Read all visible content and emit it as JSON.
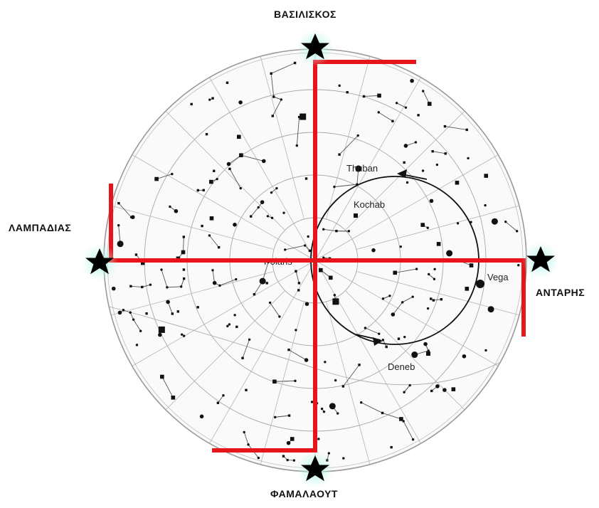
{
  "cardinal_labels": {
    "top": "ΒΑΣΙΛΙΣΚΟΣ",
    "left": "ΛΑΜΠΑΔΙΑΣ",
    "right": "ΑΝΤΑΡΗΣ",
    "bottom": "ΦΑΜΑΛΑΟΥΤ"
  },
  "star_labels": {
    "thuban": "Thuban",
    "kochab": "Kochab",
    "polaris": "Polaris",
    "vega": "Vega",
    "deneb": "Deneb"
  },
  "colors": {
    "swastika_arms": "#e8141b",
    "chart_lines": "#888888",
    "stars": "#111111",
    "precession_circle": "#111111"
  },
  "icons": {
    "cardinal_marker": "black-star-icon",
    "precession_direction": "arrow-icon"
  }
}
